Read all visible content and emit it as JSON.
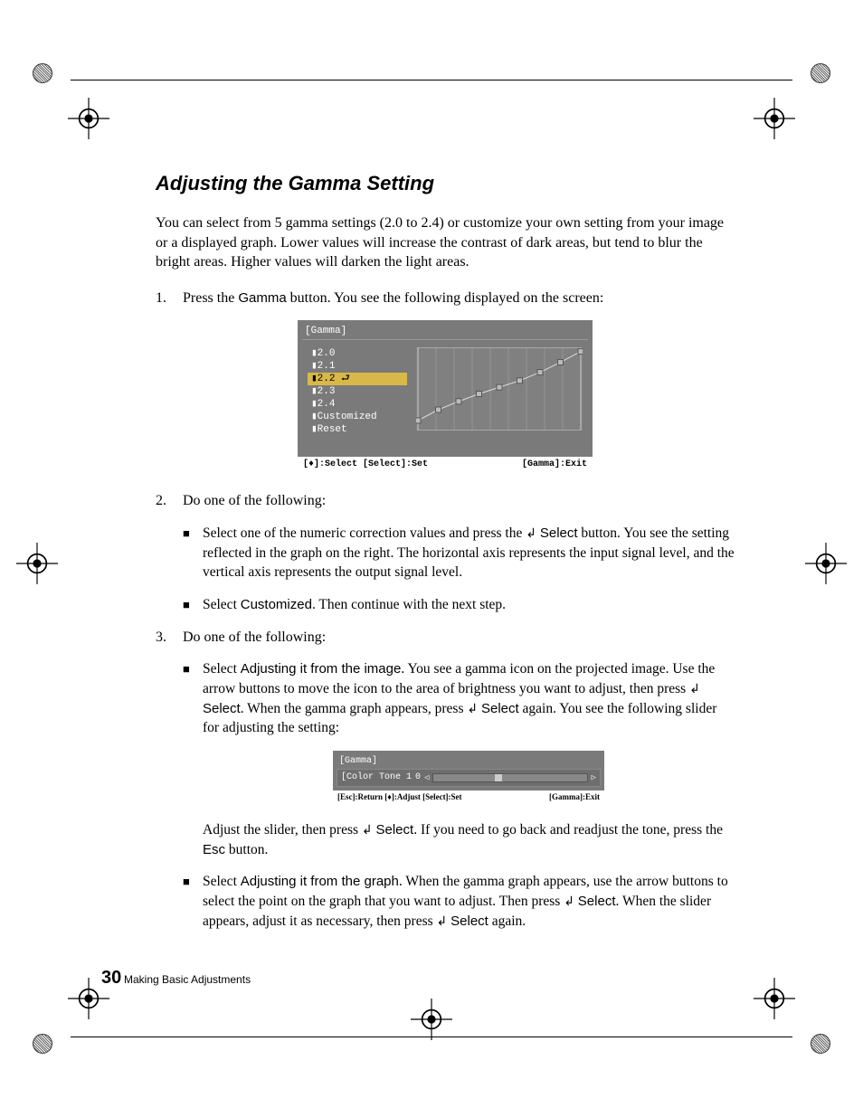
{
  "heading": "Adjusting the Gamma Setting",
  "intro": "You can select from 5 gamma settings (2.0 to 2.4) or customize your own setting from your image or a displayed graph. Lower values will increase the contrast of dark areas, but tend to blur the bright areas. Higher values will darken the light areas.",
  "step1": {
    "num": "1.",
    "pre": "Press the ",
    "button": "Gamma",
    "post": " button. You see the following displayed on the screen:"
  },
  "fig1": {
    "title": "[Gamma]",
    "menu": [
      "2.0",
      "2.1",
      "2.2",
      "2.3",
      "2.4",
      "Customized",
      "Reset"
    ],
    "selected_index": 2,
    "colors": {
      "bg": "#7a7a7a",
      "highlight": "#d9b84a",
      "text": "#ffffff"
    },
    "gridcols": 9,
    "points": [
      {
        "x": 0,
        "y": 0.12
      },
      {
        "x": 1,
        "y": 0.25
      },
      {
        "x": 2,
        "y": 0.35
      },
      {
        "x": 3,
        "y": 0.44
      },
      {
        "x": 4,
        "y": 0.52
      },
      {
        "x": 5,
        "y": 0.6
      },
      {
        "x": 6,
        "y": 0.7
      },
      {
        "x": 7,
        "y": 0.82
      },
      {
        "x": 8,
        "y": 0.95
      }
    ],
    "bar_left": "[♦]:Select [Select]:Set",
    "bar_right": "[Gamma]:Exit"
  },
  "step2": {
    "num": "2.",
    "lead": "Do one of the following:",
    "bullets": [
      {
        "pre": "Select one of the numeric correction values and press the ",
        "btn": "Select",
        "post": " button. You see the setting reflected in the graph on the right. The horizontal axis represents the input signal level, and the vertical axis represents the output signal level."
      },
      {
        "pre": "Select ",
        "btn": "Customized",
        "post": ". Then continue with the next step."
      }
    ]
  },
  "step3": {
    "num": "3.",
    "lead": "Do one of the following:",
    "bullet1": {
      "pre": "Select ",
      "bold": "Adjusting it from the image",
      "post1": ". You see a gamma icon on the projected image. Use the arrow buttons to move the icon to the area of brightness you want to adjust, then press ",
      "sel1": "Select",
      "post2": ". When the gamma graph appears, press ",
      "sel2": "Select",
      "post3": " again. You see the following slider for adjusting the setting:"
    },
    "fig2": {
      "title": "[Gamma]",
      "row_label": "[Color Tone 1",
      "value": "0",
      "bar_left": "[Esc]:Return [♦]:Adjust [Select]:Set",
      "bar_right": "[Gamma]:Exit"
    },
    "bullet1_after": {
      "pre": "Adjust the slider, then press ",
      "sel": "Select",
      "post1": ". If you need to go back and readjust the tone, press the ",
      "esc": "Esc",
      "post2": " button."
    },
    "bullet2": {
      "pre": "Select ",
      "bold": "Adjusting it from the graph",
      "post1": ". When the gamma graph appears, use the arrow buttons to select the point on the graph that you want to adjust. Then press ",
      "sel1": "Select",
      "post2": ". When the slider appears, adjust it as necessary, then press ",
      "sel2": "Select",
      "post3": " again."
    }
  },
  "footer": {
    "page": "30",
    "caption": "Making Basic Adjustments"
  },
  "enter_glyph": "↲"
}
